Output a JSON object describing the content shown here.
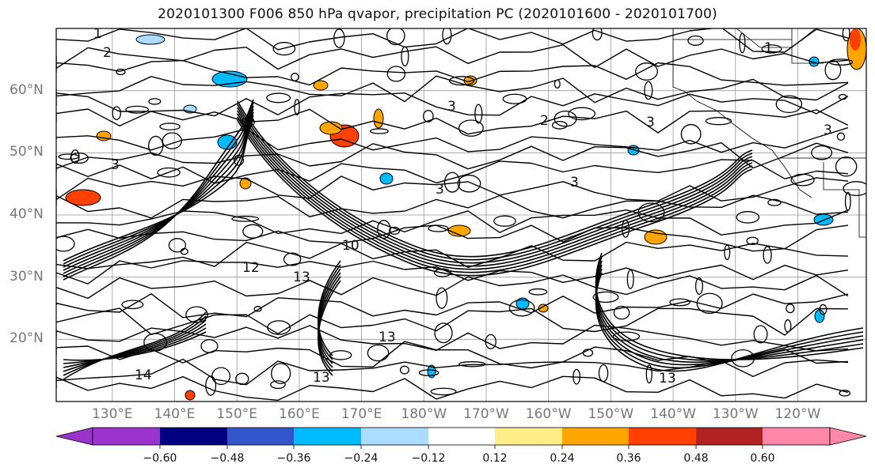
{
  "title": "2020101300 F006 850 hPa qvapor, precipitation PC (2020101600 - 2020101700)",
  "map": {
    "lat_labels": [
      "60°N",
      "50°N",
      "40°N",
      "30°N",
      "20°N"
    ],
    "lat_values": [
      60,
      50,
      40,
      30,
      20
    ],
    "lon_labels": [
      "130°E",
      "140°E",
      "150°E",
      "160°E",
      "170°E",
      "180°W",
      "170°W",
      "160°W",
      "150°W",
      "140°W",
      "130°W",
      "120°W"
    ],
    "lon_values": [
      130,
      140,
      150,
      160,
      170,
      180,
      190,
      200,
      210,
      220,
      230,
      240
    ],
    "lon_range": [
      121,
      251
    ],
    "lat_range": [
      10,
      70
    ],
    "gridlines": true,
    "contour_labels": [
      "1",
      "2",
      "3",
      "3",
      "3",
      "3",
      "2",
      "3",
      "10",
      "12",
      "13",
      "13",
      "14",
      "13",
      "13",
      "1",
      "3"
    ],
    "contour_color": "#000000"
  },
  "colorbar": {
    "ticks": [
      "−0.60",
      "−0.48",
      "−0.36",
      "−0.24",
      "−0.12",
      "0.12",
      "0.24",
      "0.36",
      "0.48",
      "0.60"
    ],
    "tick_values": [
      -0.6,
      -0.48,
      -0.36,
      -0.24,
      -0.12,
      0.12,
      0.24,
      0.36,
      0.48,
      0.6
    ],
    "colors": [
      "#9933cc",
      "#000080",
      "#3355cc",
      "#00bbff",
      "#aaddff",
      "#ffffff",
      "#ffee88",
      "#ffa500",
      "#ff4000",
      "#b22222",
      "#ff88aa"
    ],
    "extend": "both"
  }
}
